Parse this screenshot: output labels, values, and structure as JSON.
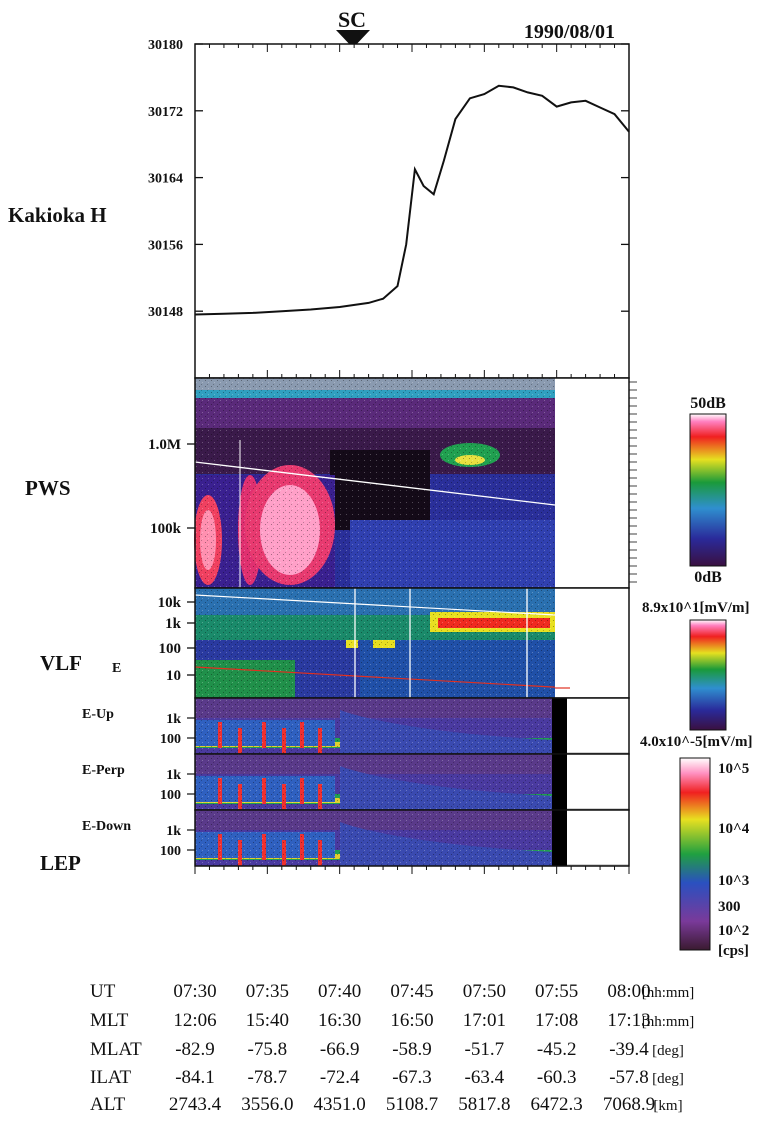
{
  "chart_data": {
    "type": "line",
    "date": "1990/08/01",
    "sc_label": "SC",
    "kakioka": {
      "label": "Kakioka H",
      "yticks": [
        "30180",
        "30172",
        "30164",
        "30156",
        "30148"
      ],
      "ylim": [
        30140,
        30180
      ],
      "x_minutes": [
        0,
        2,
        4,
        6,
        8,
        10,
        12,
        13,
        14,
        14.6,
        15.2,
        15.8,
        16.5,
        17.2,
        18,
        19,
        20,
        21,
        22,
        23,
        24,
        25,
        26,
        27,
        28,
        29,
        30
      ],
      "values": [
        30147.6,
        30147.7,
        30147.8,
        30148,
        30148.2,
        30148.5,
        30149,
        30149.5,
        30151,
        30156,
        30165,
        30163,
        30162,
        30166,
        30171,
        30173.5,
        30174,
        30175,
        30174.8,
        30174.2,
        30173.8,
        30172.5,
        30173,
        30173.2,
        30172.4,
        30171.6,
        30169.5
      ]
    },
    "pws": {
      "label": "PWS",
      "yticks": [
        "1.0M",
        "100k"
      ],
      "colorbar": {
        "top": "50dB",
        "bottom": "0dB"
      }
    },
    "vlf": {
      "label": "VLF",
      "sublabel": "E",
      "yticks": [
        "10k",
        "1k",
        "100",
        "10"
      ],
      "colorbar": {
        "top": "8.9x10^1[mV/m]",
        "bottom": "4.0x10^-5[mV/m]"
      }
    },
    "lep": {
      "label": "LEP",
      "panels": [
        {
          "label": "E-Up",
          "yticks": [
            "1k",
            "100"
          ]
        },
        {
          "label": "E-Perp",
          "yticks": [
            "1k",
            "100"
          ]
        },
        {
          "label": "E-Down",
          "yticks": [
            "1k",
            "100"
          ]
        }
      ],
      "colorbar": [
        "10^5",
        "10^4",
        "10^3",
        "300",
        "10^2",
        "[cps]"
      ]
    },
    "table": {
      "rows": [
        {
          "name": "UT",
          "values": [
            "07:30",
            "07:35",
            "07:40",
            "07:45",
            "07:50",
            "07:55",
            "08:00"
          ],
          "unit": "[hh:mm]"
        },
        {
          "name": "MLT",
          "values": [
            "12:06",
            "15:40",
            "16:30",
            "16:50",
            "17:01",
            "17:08",
            "17:13"
          ],
          "unit": "[hh:mm]"
        },
        {
          "name": "MLAT",
          "values": [
            "-82.9",
            "-75.8",
            "-66.9",
            "-58.9",
            "-51.7",
            "-45.2",
            "-39.4"
          ],
          "unit": "[deg]"
        },
        {
          "name": "ILAT",
          "values": [
            "-84.1",
            "-78.7",
            "-72.4",
            "-67.3",
            "-63.4",
            "-60.3",
            "-57.8"
          ],
          "unit": "[deg]"
        },
        {
          "name": "ALT",
          "values": [
            "2743.4",
            "3556.0",
            "4351.0",
            "5108.7",
            "5817.8",
            "6472.3",
            "7068.9"
          ],
          "unit": "[km]"
        }
      ]
    }
  }
}
